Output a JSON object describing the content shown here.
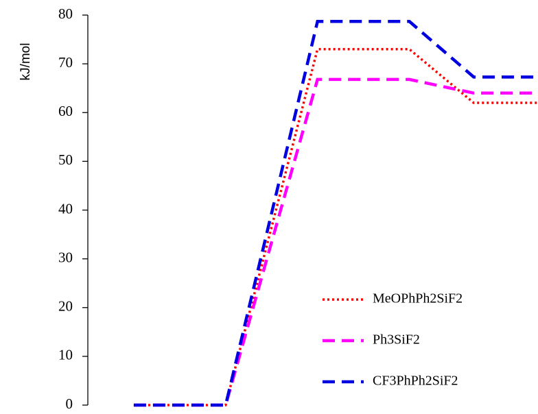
{
  "chart_data": {
    "type": "line",
    "y_label": "kJ/mol",
    "x": [
      1,
      2,
      3,
      4,
      4.7,
      5.4
    ],
    "xlim": [
      0.5,
      5.4
    ],
    "ylim": [
      0,
      80
    ],
    "yticks": [
      0,
      10,
      20,
      30,
      40,
      50,
      60,
      70,
      80
    ],
    "legend": "lower right",
    "series": [
      {
        "name": "MeOPhPh2SiF2",
        "color": "#ff0000",
        "style": "dotted",
        "values": [
          0,
          0,
          73,
          73,
          62,
          62
        ]
      },
      {
        "name": "Ph3SiF2",
        "color": "#ff00ff",
        "style": "dashed",
        "values": [
          0,
          0,
          66.8,
          66.8,
          64,
          64
        ]
      },
      {
        "name": "CF3PhPh2SiF2",
        "color": "#0000e0",
        "style": "dashed",
        "values": [
          0,
          0,
          78.7,
          78.7,
          67.3,
          67.3
        ]
      }
    ]
  }
}
